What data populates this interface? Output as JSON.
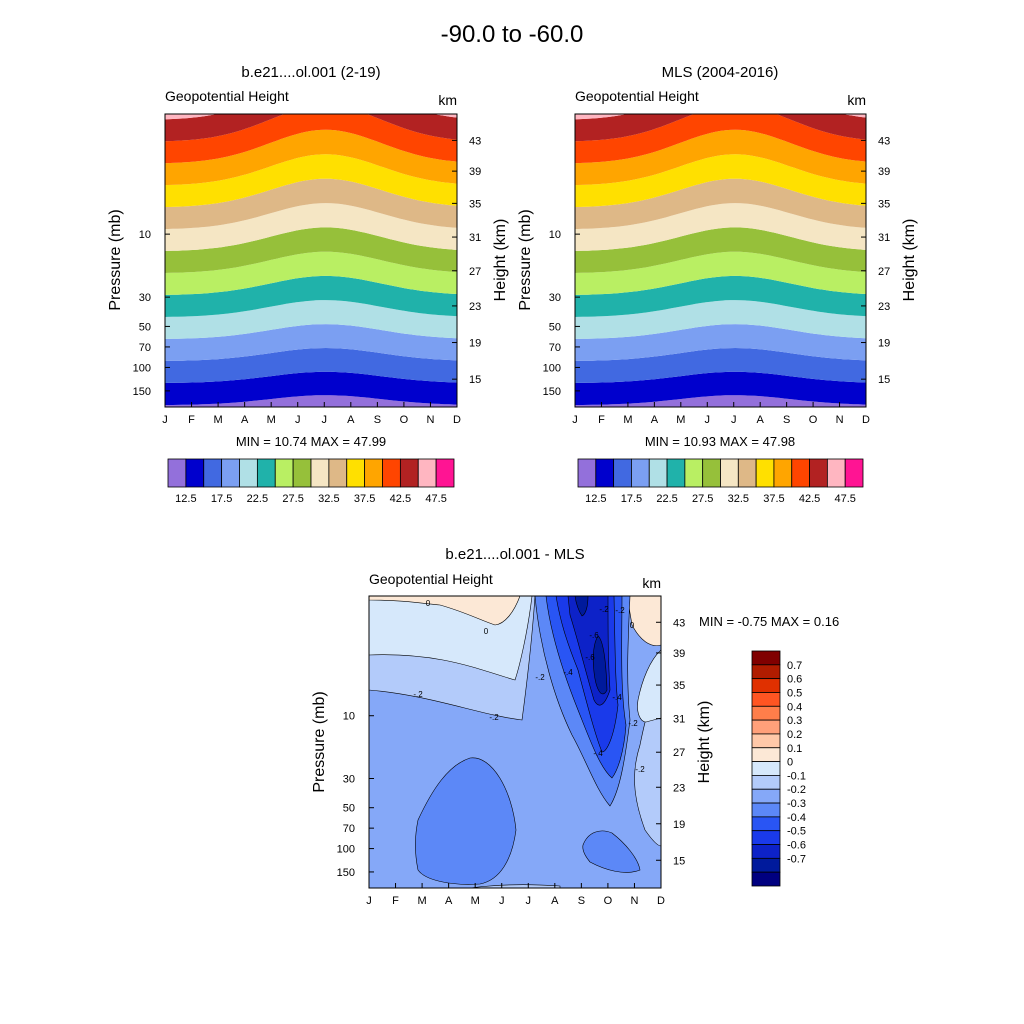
{
  "figure_title": "-90.0 to -60.0",
  "chart_data": [
    {
      "type": "contour",
      "title": "b.e21....ol.001 (2-19)",
      "variable_label": "Geopotential Height",
      "units_label": "km",
      "xlabel": "",
      "ylabel": "Pressure (mb)",
      "y2label": "Height (km)",
      "x_ticks": [
        "J",
        "F",
        "M",
        "A",
        "M",
        "J",
        "J",
        "A",
        "S",
        "O",
        "N",
        "D"
      ],
      "pressure_ticks": [
        "10",
        "30",
        "50",
        "70",
        "100",
        "150"
      ],
      "height_ticks": [
        "43",
        "39",
        "35",
        "31",
        "27",
        "23",
        "19",
        "15"
      ],
      "min_label": "MIN =  10.74  MAX =  47.99",
      "min": 10.74,
      "max": 47.99,
      "levels": [
        12.5,
        15,
        17.5,
        20,
        22.5,
        25,
        27.5,
        30,
        32.5,
        35,
        37.5,
        40,
        42.5,
        45,
        47.5
      ],
      "colorbar_labels": [
        "12.5",
        "17.5",
        "22.5",
        "27.5",
        "32.5",
        "37.5",
        "42.5",
        "47.5"
      ],
      "colors": [
        "#9370db",
        "#0000cd",
        "#4169e1",
        "#7b9ff2",
        "#b0e0e6",
        "#20b2aa",
        "#b9ef63",
        "#96c03a",
        "#f5e6c4",
        "#deb887",
        "#ffe000",
        "#ffa500",
        "#ff4500",
        "#b22222",
        "#ffb6c1",
        "#ff1493"
      ]
    },
    {
      "type": "contour",
      "title": "MLS (2004-2016)",
      "variable_label": "Geopotential Height",
      "units_label": "km",
      "xlabel": "",
      "ylabel": "Pressure (mb)",
      "y2label": "Height (km)",
      "x_ticks": [
        "J",
        "F",
        "M",
        "A",
        "M",
        "J",
        "J",
        "A",
        "S",
        "O",
        "N",
        "D"
      ],
      "pressure_ticks": [
        "10",
        "30",
        "50",
        "70",
        "100",
        "150"
      ],
      "height_ticks": [
        "43",
        "39",
        "35",
        "31",
        "27",
        "23",
        "19",
        "15"
      ],
      "min_label": "MIN =  10.93  MAX =  47.98",
      "min": 10.93,
      "max": 47.98,
      "levels": [
        12.5,
        15,
        17.5,
        20,
        22.5,
        25,
        27.5,
        30,
        32.5,
        35,
        37.5,
        40,
        42.5,
        45,
        47.5
      ],
      "colorbar_labels": [
        "12.5",
        "17.5",
        "22.5",
        "27.5",
        "32.5",
        "37.5",
        "42.5",
        "47.5"
      ],
      "colors": [
        "#9370db",
        "#0000cd",
        "#4169e1",
        "#7b9ff2",
        "#b0e0e6",
        "#20b2aa",
        "#b9ef63",
        "#96c03a",
        "#f5e6c4",
        "#deb887",
        "#ffe000",
        "#ffa500",
        "#ff4500",
        "#b22222",
        "#ffb6c1",
        "#ff1493"
      ]
    },
    {
      "type": "contour",
      "title": "b.e21....ol.001 - MLS",
      "variable_label": "Geopotential Height",
      "units_label": "km",
      "xlabel": "",
      "ylabel": "Pressure (mb)",
      "y2label": "Height (km)",
      "x_ticks": [
        "J",
        "F",
        "M",
        "A",
        "M",
        "J",
        "J",
        "A",
        "S",
        "O",
        "N",
        "D"
      ],
      "pressure_ticks": [
        "10",
        "30",
        "50",
        "70",
        "100",
        "150"
      ],
      "height_ticks": [
        "43",
        "39",
        "35",
        "31",
        "27",
        "23",
        "19",
        "15"
      ],
      "min_label": "MIN =  -0.75  MAX =   0.16",
      "min": -0.75,
      "max": 0.16,
      "contour_labels": [
        "0",
        "0",
        "-.2",
        "-.2",
        "-.2",
        "-.4",
        "-.4",
        "-.6",
        "-.6",
        "-.2",
        "-.4",
        "-.2",
        "-.2",
        "-.2",
        "0"
      ],
      "colorbar_labels": [
        "0.7",
        "0.6",
        "0.5",
        "0.4",
        "0.3",
        "0.2",
        "0.1",
        "0",
        "-0.1",
        "-0.2",
        "-0.3",
        "-0.4",
        "-0.5",
        "-0.6",
        "-0.7"
      ],
      "colors": [
        "#800000",
        "#b01c00",
        "#e03000",
        "#ff5522",
        "#ff7e4a",
        "#ffa07a",
        "#ffc8a8",
        "#fce8d6",
        "#d6e8fb",
        "#b3cbfa",
        "#85a8f8",
        "#5c88f7",
        "#2955f4",
        "#1a3aea",
        "#0d22c8",
        "#001a9c",
        "#000080"
      ]
    }
  ]
}
